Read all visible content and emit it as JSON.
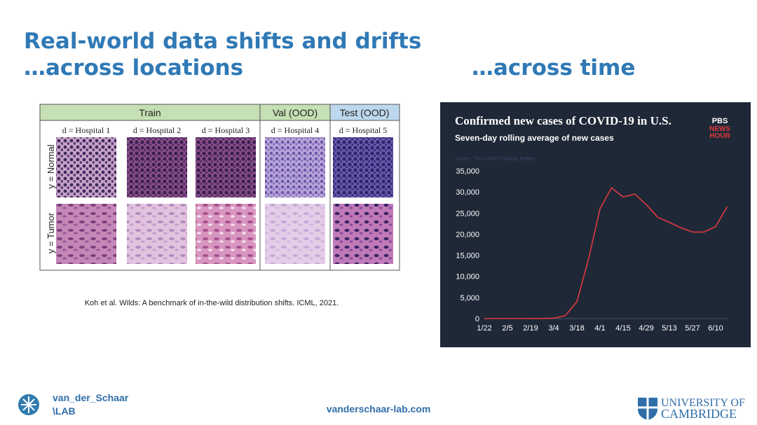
{
  "title": "Real-world data shifts and drifts",
  "subtitle_left": "…across locations",
  "subtitle_right": "…across time",
  "figure": {
    "groups": [
      "Train",
      "Val (OOD)",
      "Test (OOD)"
    ],
    "columns": [
      "d = Hospital 1",
      "d = Hospital 2",
      "d = Hospital 3",
      "d = Hospital 4",
      "d = Hospital 5"
    ],
    "rows": [
      "y = Normal",
      "y = Tumor"
    ]
  },
  "citation": "Koh et al. Wilds: A benchmark of in-the-wild distribution shifts. ICML, 2021.",
  "logo": [
    "PBS",
    "NEWS",
    "HOUR"
  ],
  "chart_data": {
    "type": "line",
    "title": "Confirmed new cases of COVID-19 in U.S.",
    "subtitle": "Seven-day rolling average of new cases",
    "source": "Source: The COVID Tracking Project",
    "categories": [
      "1/22",
      null,
      "2/5",
      null,
      "2/19",
      null,
      "3/4",
      null,
      "3/18",
      null,
      "4/1",
      null,
      "4/15",
      null,
      "4/29",
      null,
      "5/13",
      null,
      "5/27",
      null,
      "6/10",
      null
    ],
    "values": [
      0,
      0,
      0,
      0,
      0,
      30,
      100,
      700,
      4000,
      14000,
      26000,
      31000,
      28800,
      29500,
      27000,
      24000,
      22800,
      21500,
      20500,
      20500,
      21800,
      26500
    ],
    "color": "#e0393e",
    "ylim": [
      0,
      35000
    ],
    "yticks": [
      0,
      {
        "value": 5000,
        "label": "5,000"
      },
      {
        "value": 10000,
        "label": "10,000"
      },
      {
        "value": 15000,
        "label": "15,000"
      },
      {
        "value": 20000,
        "label": "20,000"
      },
      {
        "value": 25000,
        "label": "25,000"
      },
      {
        "value": 30000,
        "label": "30,000"
      },
      {
        "value": 35000,
        "label": "35,000"
      }
    ],
    "grid": false
  },
  "footer": {
    "lab": [
      "van_der_Schaar",
      "\\LAB"
    ],
    "url": "vanderschaar-lab.com",
    "university": [
      "UNIVERSITY OF",
      "CAMBRIDGE"
    ]
  }
}
